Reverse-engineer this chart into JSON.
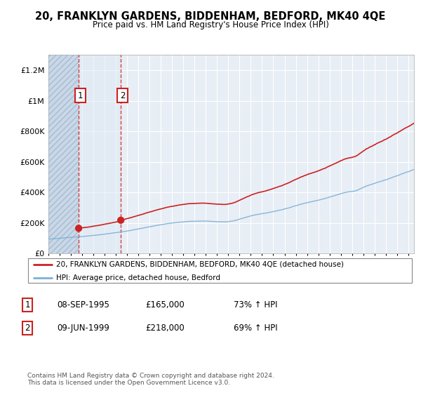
{
  "title": "20, FRANKLYN GARDENS, BIDDENHAM, BEDFORD, MK40 4QE",
  "subtitle": "Price paid vs. HM Land Registry's House Price Index (HPI)",
  "ylim": [
    0,
    1300000
  ],
  "yticks": [
    0,
    200000,
    400000,
    600000,
    800000,
    1000000,
    1200000
  ],
  "ytick_labels": [
    "£0",
    "£200K",
    "£400K",
    "£600K",
    "£800K",
    "£1M",
    "£1.2M"
  ],
  "background_color": "#ffffff",
  "plot_bg_color": "#e8eef5",
  "hatch_fill_color": "#d0dce8",
  "hatch_right_color": "#dde6f0",
  "grid_color": "#ffffff",
  "sale1_date": 1995.69,
  "sale1_price": 165000,
  "sale1_label": "1",
  "sale2_date": 1999.44,
  "sale2_price": 218000,
  "sale2_label": "2",
  "sale_color": "#cc2222",
  "hpi_color": "#7ab0d8",
  "legend_label_sale": "20, FRANKLYN GARDENS, BIDDENHAM, BEDFORD, MK40 4QE (detached house)",
  "legend_label_hpi": "HPI: Average price, detached house, Bedford",
  "table_row1": [
    "1",
    "08-SEP-1995",
    "£165,000",
    "73% ↑ HPI"
  ],
  "table_row2": [
    "2",
    "09-JUN-1999",
    "£218,000",
    "69% ↑ HPI"
  ],
  "footnote": "Contains HM Land Registry data © Crown copyright and database right 2024.\nThis data is licensed under the Open Government Licence v3.0.",
  "xmin": 1993,
  "xmax": 2025.5
}
